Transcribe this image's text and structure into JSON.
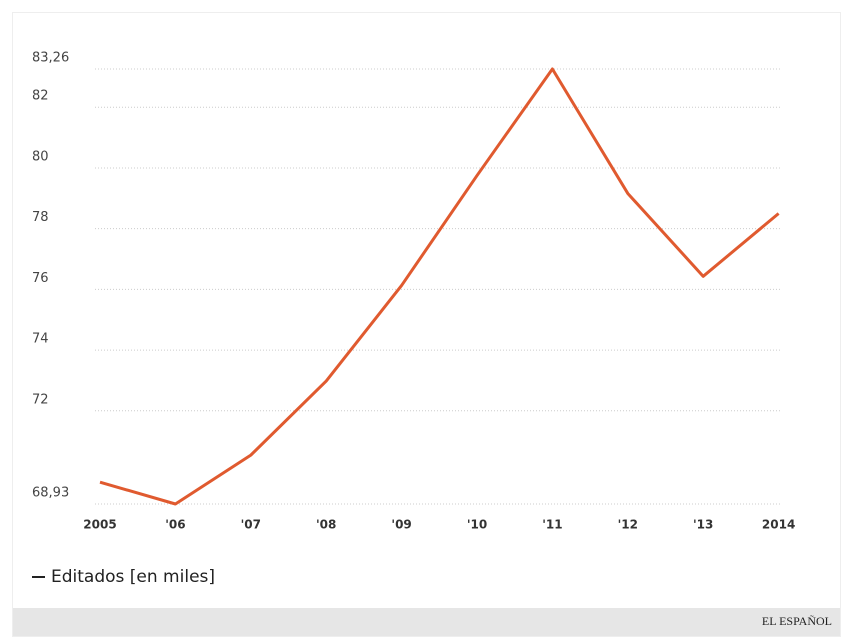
{
  "chart_data": {
    "type": "line",
    "categories": [
      "2005",
      "'06",
      "'07",
      "'08",
      "'09",
      "'10",
      "'11",
      "'12",
      "'13",
      "2014"
    ],
    "series": [
      {
        "name": "Editados [en miles]",
        "color": "#e05a2f",
        "values": [
          69.65,
          68.93,
          70.54,
          72.98,
          76.13,
          79.75,
          83.26,
          79.16,
          76.43,
          78.5
        ]
      }
    ],
    "ylim": [
      68.93,
      83.26
    ],
    "yticks": [
      {
        "value": 68.93,
        "label": "68,93"
      },
      72,
      74,
      76,
      78,
      80,
      82,
      {
        "value": 83.26,
        "label": "83,26"
      }
    ],
    "grid": true,
    "source": "EL ESPAÑOL"
  }
}
